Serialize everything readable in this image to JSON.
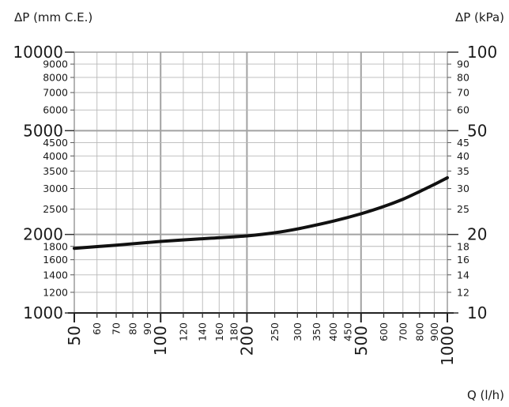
{
  "chart_data": {
    "type": "line",
    "x_scale": "log",
    "y_scale": "log",
    "xlim": [
      50,
      1000
    ],
    "ylim_left": [
      1000,
      10000
    ],
    "ylim_right": [
      10,
      100
    ],
    "grid": true,
    "xlabel": "Q (l/h)",
    "ylabel_left": "ΔP (mm C.E.)",
    "ylabel_right": "ΔP (kPa)",
    "x_ticks_major": [
      "50",
      "100",
      "200",
      "500",
      "1000"
    ],
    "x_ticks_minor": [
      "60",
      "70",
      "80",
      "90",
      "120",
      "140",
      "160",
      "180",
      "250",
      "300",
      "350",
      "400",
      "450",
      "600",
      "700",
      "800",
      "900"
    ],
    "y_left_ticks_major": [
      "1000",
      "2000",
      "5000",
      "10000"
    ],
    "y_left_ticks_minor": [
      "1200",
      "1400",
      "1600",
      "1800",
      "2500",
      "3000",
      "3500",
      "4000",
      "4500",
      "6000",
      "7000",
      "8000",
      "9000"
    ],
    "y_right_ticks_major": [
      "10",
      "20",
      "50",
      "100"
    ],
    "y_right_ticks_minor": [
      "12",
      "14",
      "16",
      "18",
      "25",
      "30",
      "35",
      "40",
      "45",
      "60",
      "70",
      "80",
      "90"
    ],
    "series": [
      {
        "name": "",
        "x": [
          50,
          70,
          100,
          150,
          200,
          250,
          300,
          400,
          500,
          600,
          700,
          800,
          900,
          1000
        ],
        "y": [
          1770,
          1820,
          1880,
          1935,
          1975,
          2030,
          2100,
          2250,
          2400,
          2560,
          2730,
          2920,
          3110,
          3300
        ]
      }
    ]
  }
}
